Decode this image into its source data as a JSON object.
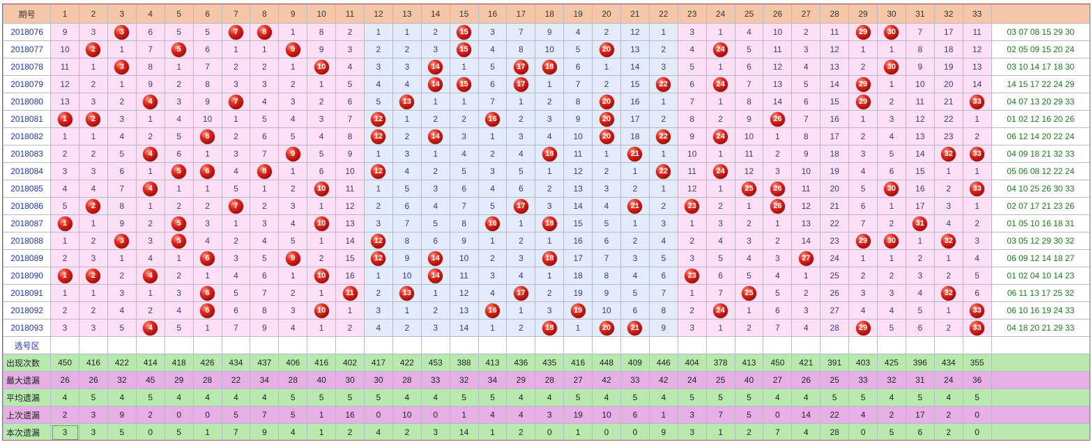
{
  "header": {
    "issue_label": "期号",
    "numbers": [
      "1",
      "2",
      "3",
      "4",
      "5",
      "6",
      "7",
      "8",
      "9",
      "10",
      "11",
      "12",
      "13",
      "14",
      "15",
      "16",
      "17",
      "18",
      "19",
      "20",
      "21",
      "22",
      "23",
      "24",
      "25",
      "26",
      "27",
      "28",
      "29",
      "30",
      "31",
      "32",
      "33"
    ]
  },
  "rows": [
    {
      "issue": "2018076",
      "cells": [
        "9",
        "3",
        "3",
        "6",
        "5",
        "5",
        "7",
        "8",
        "1",
        "8",
        "2",
        "1",
        "1",
        "2",
        "15",
        "3",
        "7",
        "9",
        "4",
        "2",
        "12",
        "1",
        "3",
        "1",
        "4",
        "10",
        "2",
        "11",
        "29",
        "30",
        "7",
        "17",
        "11"
      ],
      "hits": [
        3,
        7,
        8,
        15,
        29,
        30
      ],
      "result": "03 07 08 15 29 30"
    },
    {
      "issue": "2018077",
      "cells": [
        "10",
        "2",
        "1",
        "7",
        "5",
        "6",
        "1",
        "1",
        "9",
        "9",
        "3",
        "2",
        "2",
        "3",
        "15",
        "4",
        "8",
        "10",
        "5",
        "20",
        "13",
        "2",
        "4",
        "24",
        "5",
        "11",
        "3",
        "12",
        "1",
        "1",
        "8",
        "18",
        "12"
      ],
      "hits": [
        2,
        5,
        9,
        15,
        20,
        24
      ],
      "result": "02 05 09 15 20 24"
    },
    {
      "issue": "2018078",
      "cells": [
        "11",
        "1",
        "3",
        "8",
        "1",
        "7",
        "2",
        "2",
        "1",
        "10",
        "4",
        "3",
        "3",
        "14",
        "1",
        "5",
        "17",
        "18",
        "6",
        "1",
        "14",
        "3",
        "5",
        "1",
        "6",
        "12",
        "4",
        "13",
        "2",
        "30",
        "9",
        "19",
        "13"
      ],
      "hits": [
        3,
        10,
        14,
        17,
        18,
        30
      ],
      "result": "03 10 14 17 18 30"
    },
    {
      "issue": "2018079",
      "cells": [
        "12",
        "2",
        "1",
        "9",
        "2",
        "8",
        "3",
        "3",
        "2",
        "1",
        "5",
        "4",
        "4",
        "14",
        "15",
        "6",
        "17",
        "1",
        "7",
        "2",
        "15",
        "22",
        "6",
        "24",
        "7",
        "13",
        "5",
        "14",
        "29",
        "1",
        "10",
        "20",
        "14"
      ],
      "hits": [
        14,
        15,
        17,
        22,
        24,
        29
      ],
      "result": "14 15 17 22 24 29"
    },
    {
      "issue": "2018080",
      "cells": [
        "13",
        "3",
        "2",
        "4",
        "3",
        "9",
        "7",
        "4",
        "3",
        "2",
        "6",
        "5",
        "13",
        "1",
        "1",
        "7",
        "1",
        "2",
        "8",
        "20",
        "16",
        "1",
        "7",
        "1",
        "8",
        "14",
        "6",
        "15",
        "29",
        "2",
        "11",
        "21",
        "33"
      ],
      "hits": [
        4,
        7,
        13,
        20,
        29,
        33
      ],
      "result": "04 07 13 20 29 33"
    },
    {
      "issue": "2018081",
      "cells": [
        "1",
        "2",
        "3",
        "1",
        "4",
        "10",
        "1",
        "5",
        "4",
        "3",
        "7",
        "12",
        "1",
        "2",
        "2",
        "16",
        "2",
        "3",
        "9",
        "20",
        "17",
        "2",
        "8",
        "2",
        "9",
        "26",
        "7",
        "16",
        "1",
        "3",
        "12",
        "22",
        "1"
      ],
      "hits": [
        1,
        2,
        12,
        16,
        20,
        26
      ],
      "result": "01 02 12 16 20 26"
    },
    {
      "issue": "2018082",
      "cells": [
        "1",
        "1",
        "4",
        "2",
        "5",
        "6",
        "2",
        "6",
        "5",
        "4",
        "8",
        "12",
        "2",
        "14",
        "3",
        "1",
        "3",
        "4",
        "10",
        "20",
        "18",
        "22",
        "9",
        "24",
        "10",
        "1",
        "8",
        "17",
        "2",
        "4",
        "13",
        "23",
        "2"
      ],
      "hits": [
        6,
        12,
        14,
        20,
        22,
        24
      ],
      "result": "06 12 14 20 22 24"
    },
    {
      "issue": "2018083",
      "cells": [
        "2",
        "2",
        "5",
        "4",
        "6",
        "1",
        "3",
        "7",
        "9",
        "5",
        "9",
        "1",
        "3",
        "1",
        "4",
        "2",
        "4",
        "18",
        "11",
        "1",
        "21",
        "1",
        "10",
        "1",
        "11",
        "2",
        "9",
        "18",
        "3",
        "5",
        "14",
        "32",
        "33"
      ],
      "hits": [
        4,
        9,
        18,
        21,
        32,
        33
      ],
      "result": "04 09 18 21 32 33"
    },
    {
      "issue": "2018084",
      "cells": [
        "3",
        "3",
        "6",
        "1",
        "5",
        "6",
        "4",
        "8",
        "1",
        "6",
        "10",
        "12",
        "4",
        "2",
        "5",
        "3",
        "5",
        "1",
        "12",
        "2",
        "1",
        "22",
        "11",
        "24",
        "12",
        "3",
        "10",
        "19",
        "4",
        "6",
        "15",
        "1",
        "1"
      ],
      "hits": [
        5,
        6,
        8,
        12,
        22,
        24
      ],
      "result": "05 06 08 12 22 24"
    },
    {
      "issue": "2018085",
      "cells": [
        "4",
        "4",
        "7",
        "4",
        "1",
        "1",
        "5",
        "1",
        "2",
        "10",
        "11",
        "1",
        "5",
        "3",
        "6",
        "4",
        "6",
        "2",
        "13",
        "3",
        "2",
        "1",
        "12",
        "1",
        "25",
        "26",
        "11",
        "20",
        "5",
        "30",
        "16",
        "2",
        "33"
      ],
      "hits": [
        4,
        10,
        25,
        26,
        30,
        33
      ],
      "result": "04 10 25 26 30 33"
    },
    {
      "issue": "2018086",
      "cells": [
        "5",
        "2",
        "8",
        "1",
        "2",
        "2",
        "7",
        "2",
        "3",
        "1",
        "12",
        "2",
        "6",
        "4",
        "7",
        "5",
        "17",
        "3",
        "14",
        "4",
        "21",
        "2",
        "23",
        "2",
        "1",
        "26",
        "12",
        "21",
        "6",
        "1",
        "17",
        "3",
        "1"
      ],
      "hits": [
        2,
        7,
        17,
        21,
        23,
        26
      ],
      "result": "02 07 17 21 23 26"
    },
    {
      "issue": "2018087",
      "cells": [
        "1",
        "1",
        "9",
        "2",
        "5",
        "3",
        "1",
        "3",
        "4",
        "10",
        "13",
        "3",
        "7",
        "5",
        "8",
        "16",
        "1",
        "18",
        "15",
        "5",
        "1",
        "3",
        "1",
        "3",
        "2",
        "1",
        "13",
        "22",
        "7",
        "2",
        "31",
        "4",
        "2"
      ],
      "hits": [
        1,
        5,
        10,
        16,
        18,
        31
      ],
      "result": "01 05 10 16 18 31"
    },
    {
      "issue": "2018088",
      "cells": [
        "1",
        "2",
        "3",
        "3",
        "5",
        "4",
        "2",
        "4",
        "5",
        "1",
        "14",
        "12",
        "8",
        "6",
        "9",
        "1",
        "2",
        "1",
        "16",
        "6",
        "2",
        "4",
        "2",
        "4",
        "3",
        "2",
        "14",
        "23",
        "29",
        "30",
        "1",
        "32",
        "3"
      ],
      "hits": [
        3,
        5,
        12,
        29,
        30,
        32
      ],
      "result": "03 05 12 29 30 32"
    },
    {
      "issue": "2018089",
      "cells": [
        "2",
        "3",
        "1",
        "4",
        "1",
        "6",
        "3",
        "5",
        "9",
        "2",
        "15",
        "12",
        "9",
        "14",
        "10",
        "2",
        "3",
        "18",
        "17",
        "7",
        "3",
        "5",
        "3",
        "5",
        "4",
        "3",
        "27",
        "24",
        "1",
        "1",
        "2",
        "1",
        "4"
      ],
      "hits": [
        6,
        9,
        12,
        14,
        18,
        27
      ],
      "result": "06 09 12 14 18 27"
    },
    {
      "issue": "2018090",
      "cells": [
        "1",
        "2",
        "2",
        "4",
        "2",
        "1",
        "4",
        "6",
        "1",
        "10",
        "16",
        "1",
        "10",
        "14",
        "11",
        "3",
        "4",
        "1",
        "18",
        "8",
        "4",
        "6",
        "23",
        "6",
        "5",
        "4",
        "1",
        "25",
        "2",
        "2",
        "3",
        "2",
        "5"
      ],
      "hits": [
        1,
        2,
        4,
        10,
        14,
        23
      ],
      "result": "01 02 04 10 14 23"
    },
    {
      "issue": "2018091",
      "cells": [
        "1",
        "1",
        "3",
        "1",
        "3",
        "6",
        "5",
        "7",
        "2",
        "1",
        "11",
        "2",
        "13",
        "1",
        "12",
        "4",
        "17",
        "2",
        "19",
        "9",
        "5",
        "7",
        "1",
        "7",
        "25",
        "5",
        "2",
        "26",
        "3",
        "3",
        "4",
        "32",
        "6"
      ],
      "hits": [
        6,
        11,
        13,
        17,
        25,
        32
      ],
      "result": "06 11 13 17 25 32"
    },
    {
      "issue": "2018092",
      "cells": [
        "2",
        "2",
        "4",
        "2",
        "4",
        "6",
        "6",
        "8",
        "3",
        "10",
        "1",
        "3",
        "1",
        "2",
        "13",
        "16",
        "1",
        "3",
        "19",
        "10",
        "6",
        "8",
        "2",
        "24",
        "1",
        "6",
        "3",
        "27",
        "4",
        "4",
        "5",
        "1",
        "33"
      ],
      "hits": [
        6,
        10,
        16,
        19,
        24,
        33
      ],
      "result": "06 10 16 19 24 33"
    },
    {
      "issue": "2018093",
      "cells": [
        "3",
        "3",
        "5",
        "4",
        "5",
        "1",
        "7",
        "9",
        "4",
        "1",
        "2",
        "4",
        "2",
        "3",
        "14",
        "1",
        "2",
        "18",
        "1",
        "20",
        "21",
        "9",
        "3",
        "1",
        "2",
        "7",
        "4",
        "28",
        "29",
        "5",
        "6",
        "2",
        "33"
      ],
      "hits": [
        4,
        18,
        20,
        21,
        29,
        33
      ],
      "result": "04 18 20 21 29 33"
    }
  ],
  "select_row": {
    "label": "选号区"
  },
  "stats": [
    {
      "label": "出现次数",
      "style": "green",
      "values": [
        "450",
        "416",
        "422",
        "414",
        "418",
        "426",
        "434",
        "437",
        "406",
        "416",
        "402",
        "417",
        "422",
        "453",
        "388",
        "413",
        "436",
        "435",
        "416",
        "448",
        "409",
        "446",
        "404",
        "378",
        "413",
        "450",
        "421",
        "391",
        "403",
        "425",
        "396",
        "434",
        "355"
      ]
    },
    {
      "label": "最大遗漏",
      "style": "pink",
      "values": [
        "26",
        "26",
        "32",
        "45",
        "29",
        "28",
        "22",
        "34",
        "28",
        "40",
        "30",
        "30",
        "28",
        "33",
        "32",
        "34",
        "29",
        "28",
        "27",
        "42",
        "33",
        "42",
        "24",
        "25",
        "40",
        "27",
        "26",
        "25",
        "33",
        "32",
        "31",
        "24",
        "36"
      ]
    },
    {
      "label": "平均遗漏",
      "style": "green",
      "values": [
        "4",
        "5",
        "4",
        "5",
        "4",
        "4",
        "4",
        "4",
        "5",
        "5",
        "5",
        "5",
        "4",
        "4",
        "5",
        "5",
        "4",
        "4",
        "5",
        "4",
        "5",
        "4",
        "5",
        "5",
        "5",
        "4",
        "4",
        "5",
        "5",
        "4",
        "5",
        "4",
        "5"
      ]
    },
    {
      "label": "上次遗漏",
      "style": "pink",
      "values": [
        "2",
        "3",
        "9",
        "2",
        "0",
        "0",
        "5",
        "7",
        "5",
        "1",
        "16",
        "0",
        "10",
        "0",
        "1",
        "4",
        "4",
        "3",
        "19",
        "10",
        "6",
        "1",
        "3",
        "7",
        "5",
        "0",
        "14",
        "22",
        "4",
        "2",
        "17",
        "2",
        "0"
      ]
    },
    {
      "label": "本次遗漏",
      "style": "green",
      "values": [
        "3",
        "3",
        "5",
        "0",
        "5",
        "1",
        "7",
        "9",
        "4",
        "1",
        "2",
        "4",
        "2",
        "3",
        "14",
        "1",
        "2",
        "0",
        "1",
        "0",
        "0",
        "9",
        "3",
        "1",
        "2",
        "7",
        "4",
        "28",
        "0",
        "5",
        "6",
        "2",
        "0"
      ]
    }
  ],
  "colors": {
    "header_bg": "#f6c6a8",
    "zone_a": "#fde0f6",
    "zone_b": "#e4ecfb",
    "stat_green": "#b8eab0",
    "stat_pink": "#e6b0e6",
    "ball": "#d42a1c"
  }
}
